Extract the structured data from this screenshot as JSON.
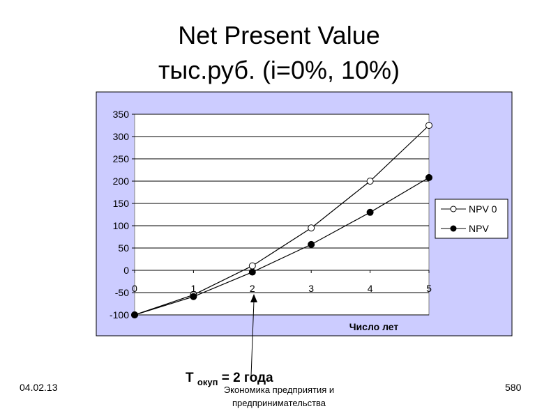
{
  "slide": {
    "title_line1": "Net Present Value",
    "title_line2": "тыс.руб. (i=0%, 10%)",
    "payback_prefix": "T",
    "payback_sub": "окуп",
    "payback_suffix": "= 2 года",
    "footer_date": "04.02.13",
    "footer_center_line1": "Экономика предприятия и",
    "footer_center_line2": "предпринимательства",
    "footer_page": "580"
  },
  "chart_data": {
    "type": "line",
    "xlabel": "Число лет",
    "ylabel": "",
    "x": [
      0,
      1,
      2,
      3,
      4,
      5
    ],
    "x_ticks": [
      "0",
      "1",
      "2",
      "3",
      "4",
      "5"
    ],
    "ylim": [
      -100,
      350
    ],
    "y_ticks": [
      "-100",
      "-50",
      "0",
      "50",
      "100",
      "150",
      "200",
      "250",
      "300",
      "350"
    ],
    "grid": true,
    "legend_position": "right",
    "series": [
      {
        "name": "NPV 0",
        "marker": "open-circle",
        "values": [
          -100,
          -55,
          10,
          95,
          200,
          325
        ]
      },
      {
        "name": "NPV",
        "marker": "filled-circle",
        "values": [
          -100,
          -59,
          -4,
          58,
          130,
          208
        ]
      }
    ],
    "colors": {
      "plot_bg": "#ffffff",
      "outer_bg": "#ccccff",
      "line": "#000000",
      "grid": "#000000"
    }
  }
}
